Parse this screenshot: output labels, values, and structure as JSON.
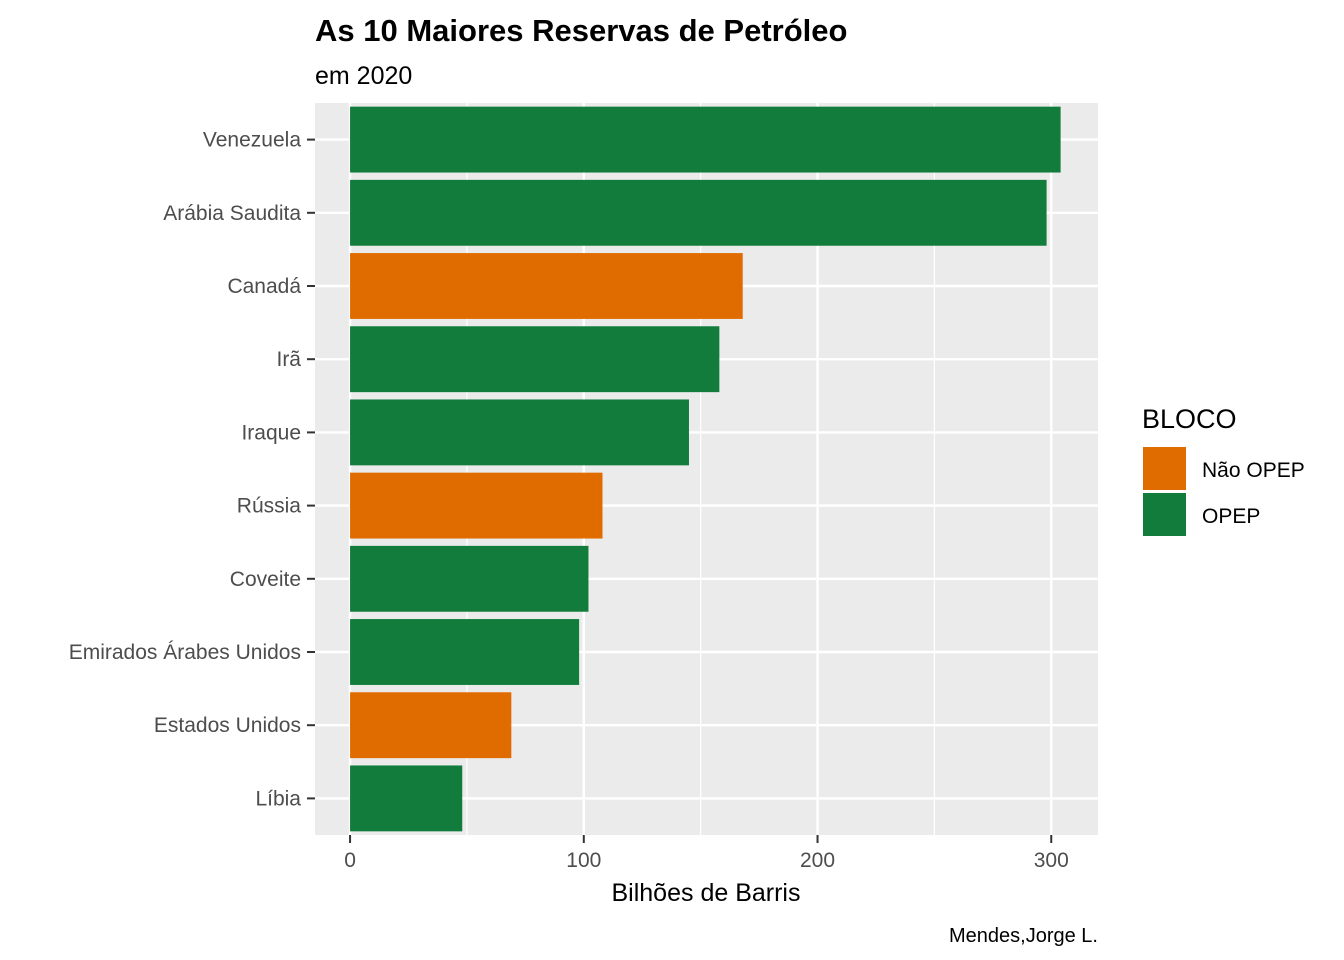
{
  "chart_data": {
    "type": "bar",
    "orientation": "horizontal",
    "title": "As 10 Maiores Reservas de Petróleo",
    "subtitle": "em 2020",
    "xlabel": "Bilhões de Barris",
    "ylabel": "",
    "caption": "Mendes,Jorge L.",
    "xlim": [
      -15,
      320
    ],
    "xticks": [
      0,
      100,
      200,
      300
    ],
    "grid": true,
    "legend": {
      "title": "BLOCO",
      "position": "right",
      "entries": [
        {
          "label": "Não OPEP",
          "color": "#e06c00"
        },
        {
          "label": "OPEP",
          "color": "#117c3b"
        }
      ]
    },
    "categories": [
      "Venezuela",
      "Arábia Saudita",
      "Canadá",
      "Irã",
      "Iraque",
      "Rússia",
      "Coveite",
      "Emirados Árabes Unidos",
      "Estados Unidos",
      "Líbia"
    ],
    "values": [
      304,
      298,
      168,
      158,
      145,
      108,
      102,
      98,
      69,
      48
    ],
    "groups": [
      "OPEP",
      "OPEP",
      "Não OPEP",
      "OPEP",
      "OPEP",
      "Não OPEP",
      "OPEP",
      "OPEP",
      "Não OPEP",
      "OPEP"
    ]
  }
}
